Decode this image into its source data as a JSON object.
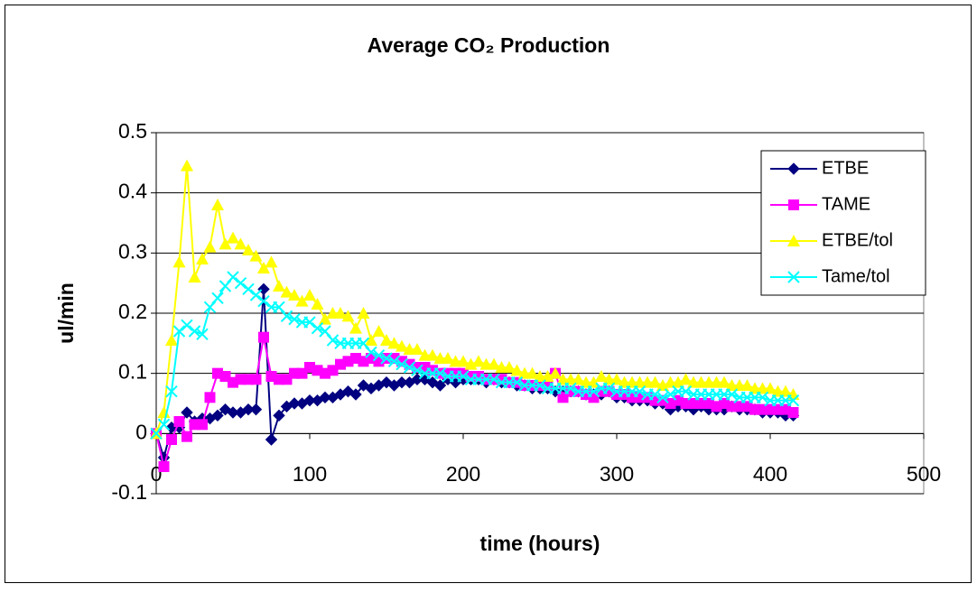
{
  "chart_data": {
    "type": "line",
    "title": "Average CO₂ Production",
    "x_label": "time (hours)",
    "y_label": "ul/min",
    "x": [
      0,
      5,
      10,
      15,
      20,
      25,
      30,
      35,
      40,
      45,
      50,
      55,
      60,
      65,
      70,
      75,
      80,
      85,
      90,
      95,
      100,
      105,
      110,
      115,
      120,
      125,
      130,
      135,
      140,
      145,
      150,
      155,
      160,
      165,
      170,
      175,
      180,
      185,
      190,
      195,
      200,
      205,
      210,
      215,
      220,
      225,
      230,
      235,
      240,
      245,
      250,
      255,
      260,
      265,
      270,
      275,
      280,
      285,
      290,
      295,
      300,
      305,
      310,
      315,
      320,
      325,
      330,
      335,
      340,
      345,
      350,
      355,
      360,
      365,
      370,
      375,
      380,
      385,
      390,
      395,
      400,
      405,
      410,
      415
    ],
    "series": [
      {
        "name": "ETBE",
        "color": "#000080",
        "marker": "diamond",
        "values": [
          0,
          -0.04,
          0.01,
          0.01,
          0.035,
          0.02,
          0.025,
          0.025,
          0.03,
          0.04,
          0.035,
          0.035,
          0.04,
          0.04,
          0.24,
          -0.01,
          0.03,
          0.045,
          0.05,
          0.05,
          0.055,
          0.055,
          0.06,
          0.06,
          0.065,
          0.07,
          0.065,
          0.08,
          0.075,
          0.08,
          0.085,
          0.08,
          0.085,
          0.085,
          0.09,
          0.09,
          0.085,
          0.08,
          0.09,
          0.085,
          0.09,
          0.09,
          0.09,
          0.085,
          0.09,
          0.085,
          0.085,
          0.08,
          0.08,
          0.075,
          0.075,
          0.075,
          0.07,
          0.07,
          0.07,
          0.07,
          0.065,
          0.065,
          0.065,
          0.07,
          0.06,
          0.06,
          0.055,
          0.055,
          0.055,
          0.05,
          0.05,
          0.04,
          0.045,
          0.045,
          0.04,
          0.045,
          0.04,
          0.04,
          0.04,
          0.045,
          0.04,
          0.04,
          0.04,
          0.035,
          0.035,
          0.035,
          0.03,
          0.03
        ]
      },
      {
        "name": "TAME",
        "color": "#ff00ff",
        "marker": "square",
        "values": [
          0,
          -0.055,
          -0.01,
          0.02,
          -0.005,
          0.015,
          0.015,
          0.06,
          0.1,
          0.095,
          0.085,
          0.09,
          0.09,
          0.09,
          0.16,
          0.095,
          0.09,
          0.09,
          0.1,
          0.1,
          0.11,
          0.105,
          0.1,
          0.105,
          0.115,
          0.12,
          0.125,
          0.12,
          0.125,
          0.12,
          0.125,
          0.125,
          0.12,
          0.115,
          0.11,
          0.11,
          0.105,
          0.1,
          0.1,
          0.1,
          0.1,
          0.095,
          0.095,
          0.09,
          0.09,
          0.09,
          0.085,
          0.085,
          0.08,
          0.08,
          0.08,
          0.08,
          0.1,
          0.06,
          0.07,
          0.07,
          0.065,
          0.06,
          0.07,
          0.07,
          0.065,
          0.065,
          0.06,
          0.06,
          0.06,
          0.055,
          0.055,
          0.05,
          0.055,
          0.05,
          0.05,
          0.05,
          0.05,
          0.045,
          0.05,
          0.045,
          0.045,
          0.045,
          0.04,
          0.04,
          0.04,
          0.04,
          0.04,
          0.035
        ]
      },
      {
        "name": "ETBE/tol",
        "color": "#ffff00",
        "marker": "triangle",
        "values": [
          0,
          0.035,
          0.155,
          0.285,
          0.445,
          0.26,
          0.29,
          0.31,
          0.38,
          0.315,
          0.325,
          0.315,
          0.305,
          0.295,
          0.275,
          0.285,
          0.245,
          0.235,
          0.23,
          0.22,
          0.23,
          0.215,
          0.19,
          0.2,
          0.2,
          0.195,
          0.175,
          0.2,
          0.155,
          0.17,
          0.155,
          0.15,
          0.145,
          0.14,
          0.14,
          0.13,
          0.13,
          0.125,
          0.125,
          0.12,
          0.12,
          0.115,
          0.12,
          0.115,
          0.115,
          0.11,
          0.11,
          0.105,
          0.1,
          0.1,
          0.095,
          0.095,
          0.1,
          0.09,
          0.09,
          0.09,
          0.085,
          0.085,
          0.095,
          0.09,
          0.09,
          0.085,
          0.085,
          0.085,
          0.085,
          0.085,
          0.08,
          0.085,
          0.085,
          0.09,
          0.085,
          0.085,
          0.085,
          0.085,
          0.085,
          0.08,
          0.08,
          0.08,
          0.075,
          0.075,
          0.075,
          0.07,
          0.07,
          0.065
        ]
      },
      {
        "name": "Tame/tol",
        "color": "#00ffff",
        "marker": "x",
        "values": [
          0,
          0.015,
          0.07,
          0.17,
          0.18,
          0.17,
          0.165,
          0.21,
          0.225,
          0.245,
          0.26,
          0.25,
          0.24,
          0.23,
          0.22,
          0.21,
          0.21,
          0.195,
          0.19,
          0.185,
          0.185,
          0.175,
          0.17,
          0.155,
          0.15,
          0.15,
          0.15,
          0.15,
          0.135,
          0.13,
          0.125,
          0.12,
          0.115,
          0.11,
          0.105,
          0.1,
          0.1,
          0.1,
          0.095,
          0.095,
          0.095,
          0.09,
          0.09,
          0.09,
          0.09,
          0.085,
          0.085,
          0.085,
          0.08,
          0.08,
          0.08,
          0.075,
          0.075,
          0.075,
          0.075,
          0.07,
          0.07,
          0.07,
          0.075,
          0.075,
          0.07,
          0.07,
          0.07,
          0.07,
          0.065,
          0.065,
          0.06,
          0.065,
          0.07,
          0.07,
          0.065,
          0.065,
          0.065,
          0.065,
          0.065,
          0.065,
          0.06,
          0.06,
          0.06,
          0.06,
          0.055,
          0.055,
          0.055,
          0.055
        ]
      }
    ],
    "xlim": [
      0,
      500
    ],
    "xticks": [
      0,
      100,
      200,
      300,
      400,
      500
    ],
    "ylim": [
      -0.1,
      0.5
    ],
    "yticks": [
      -0.1,
      0,
      0.1,
      0.2,
      0.3,
      0.4,
      0.5
    ],
    "grid": true
  }
}
